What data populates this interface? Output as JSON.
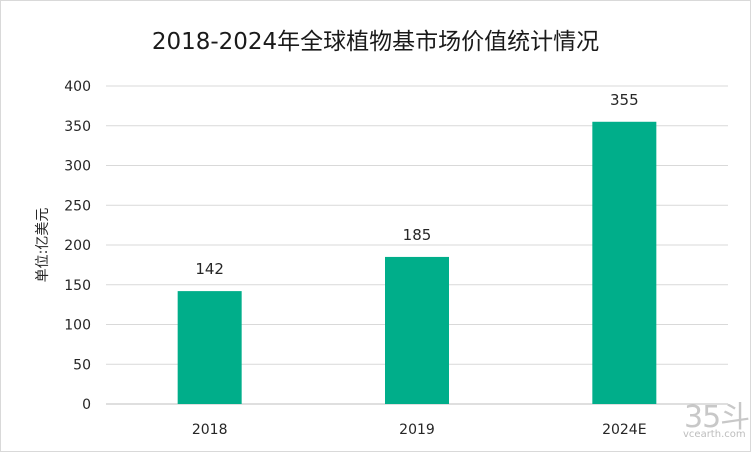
{
  "chart_data": {
    "type": "bar",
    "title": "2018-2024年全球植物基市场价值统计情况",
    "ylabel": "单位:亿美元",
    "xlabel": "",
    "categories": [
      "2018",
      "2019",
      "2024E"
    ],
    "values": [
      142,
      185,
      355
    ],
    "data_labels": [
      "142",
      "185",
      "355"
    ],
    "yticks": [
      "0",
      "50",
      "100",
      "150",
      "200",
      "250",
      "300",
      "350",
      "400"
    ],
    "ylim": [
      0,
      400
    ],
    "grid": true,
    "legend": "none",
    "bar_color": "#00ae8a"
  },
  "watermark": {
    "main": "35斗",
    "sub": "vcearth.com"
  }
}
